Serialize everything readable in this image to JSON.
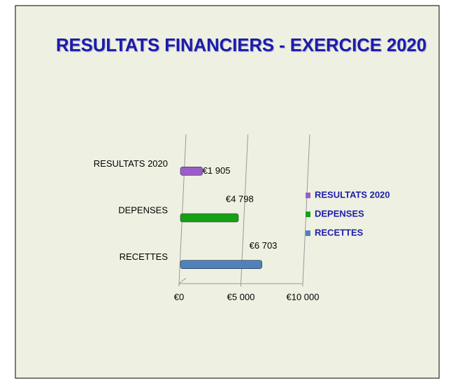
{
  "chart_data": {
    "type": "bar",
    "orientation": "horizontal",
    "title": "RESULTATS FINANCIERS - EXERCICE 2020",
    "categories": [
      "RECETTES",
      "DEPENSES",
      "RESULTATS 2020"
    ],
    "values": [
      6703,
      4798,
      1905
    ],
    "value_labels": [
      "€6 703",
      "€4 798",
      "€1 905"
    ],
    "colors": [
      "#4f81bd",
      "#16a016",
      "#9a5cc8"
    ],
    "xlim": [
      0,
      10000
    ],
    "xticks": [
      {
        "value": 0,
        "label": "€0"
      },
      {
        "value": 5000,
        "label": "€5 000"
      },
      {
        "value": 10000,
        "label": "€10 000"
      }
    ],
    "grid": true,
    "legend": "right"
  }
}
